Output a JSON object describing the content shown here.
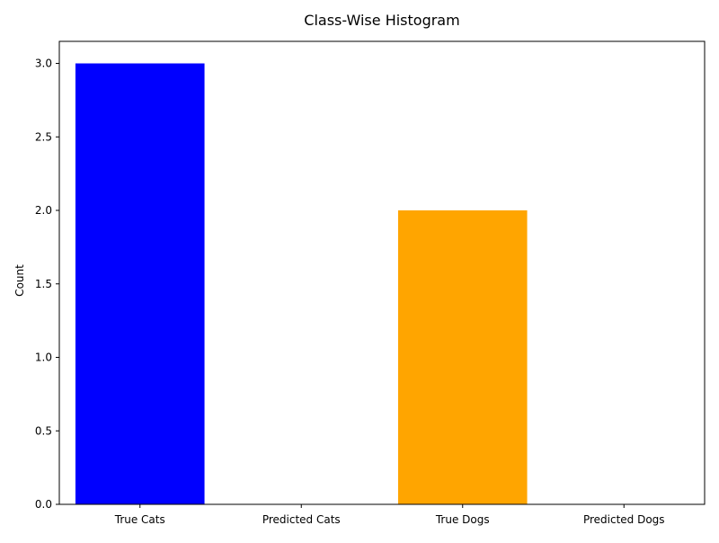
{
  "chart_data": {
    "type": "bar",
    "title": "Class-Wise Histogram",
    "xlabel": "",
    "ylabel": "Count",
    "categories": [
      "True Cats",
      "Predicted Cats",
      "True Dogs",
      "Predicted Dogs"
    ],
    "values": [
      3,
      0,
      2,
      0
    ],
    "colors": [
      "#0000ff",
      "#0000ff",
      "#ffa500",
      "#ffa500"
    ],
    "ylim": [
      0,
      3.15
    ],
    "yticks": [
      0,
      0.5,
      1,
      1.5,
      2,
      2.5,
      3
    ],
    "ytick_labels": [
      "0.0",
      "0.5",
      "1.0",
      "1.5",
      "2.0",
      "2.5",
      "3.0"
    ],
    "grid": false,
    "legend": "none"
  }
}
